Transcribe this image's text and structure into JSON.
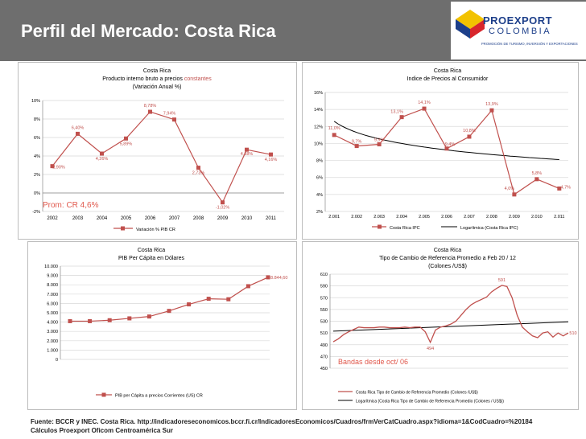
{
  "page": {
    "title": "Perfil del Mercado: Costa Rica",
    "logo": {
      "name": "PROEXPORT",
      "country": "COLOMBIA",
      "tagline": "PROMOCIÓN DE TURISMO, INVERSIÓN Y EXPORTACIONES"
    },
    "footer_source": "Fuente:  BCCR y INEC. Costa Rica. http://indicadoreseconomicos.bccr.fi.cr/IndicadoresEconomicos/Cuadros/frmVerCatCuadro.aspx?idioma=1&CodCuadro=%20184",
    "footer_calc": "Cálculos Proexport Oficom Centroamérica Sur",
    "colors": {
      "series": "#c0504d",
      "trend": "#000000",
      "label": "#c0504d",
      "note": "#e0584c",
      "header": "#6e6e6e"
    }
  },
  "chart_data": [
    {
      "type": "line",
      "title": "Costa Rica",
      "subtitle_prefix": "Producto interno bruto a precios ",
      "subtitle_highlight": "constantes",
      "subtitle2": "(Variación  Anual %)",
      "categories": [
        "2002",
        "2003",
        "2004",
        "2005",
        "2006",
        "2007",
        "2008",
        "2009",
        "2010",
        "2011"
      ],
      "x_positions": [
        2001.9,
        2002.95,
        2003.95,
        2004.95,
        2005.95,
        2006.95,
        2007.95,
        2008.95,
        2009.95,
        2010.95
      ],
      "xlim": [
        2001.5,
        2011.5
      ],
      "series": [
        {
          "name": "Variación % PIB CR",
          "values": [
            2.9,
            6.4,
            4.26,
            5.89,
            8.78,
            7.94,
            2.73,
            -1.02,
            4.68,
            4.16
          ],
          "labels": [
            "2,90%",
            "6,40%",
            "4,26%",
            "5,89%",
            "8,78%",
            "7,94%",
            "2,73%",
            "-1,02%",
            "4,68%",
            "4,16%"
          ]
        }
      ],
      "ylim": [
        -2,
        10
      ],
      "yticks": [
        -2,
        0,
        2,
        4,
        6,
        8,
        10
      ],
      "ytick_labels": [
        "-2%",
        "0%",
        "2%",
        "4%",
        "6%",
        "8%",
        "10%"
      ],
      "annotation": "Prom: CR 4,6%",
      "grid": true,
      "legend_position": "bottom"
    },
    {
      "type": "line",
      "title": "Costa Rica",
      "subtitle": "Indice de Precios al Consumidor",
      "categories": [
        "2.001",
        "2.002",
        "2.003",
        "2.004",
        "2.005",
        "2.006",
        "2.007",
        "2.008",
        "2.009",
        "2.010",
        "2.011"
      ],
      "x": [
        2001,
        2002,
        2003,
        2004,
        2005,
        2006,
        2007,
        2008,
        2009,
        2010,
        2011
      ],
      "xlim": [
        2000.6,
        2011.4
      ],
      "series": [
        {
          "name": "Costa Rica IPC",
          "values": [
            11.0,
            9.7,
            9.9,
            13.1,
            14.1,
            9.4,
            10.8,
            13.9,
            4.0,
            5.8,
            4.7
          ],
          "labels": [
            "11,0%",
            "9,7%",
            "9,9%",
            "13,1%",
            "14,1%",
            "9,4%",
            "10,8%",
            "13,9%",
            "4,0%",
            "5,8%",
            "4,7%"
          ]
        },
        {
          "name": "Logarítmica (Costa Rica IPC)",
          "trend": "logarithmic",
          "start": 12.6,
          "end": 8.1
        }
      ],
      "ylim": [
        2,
        16
      ],
      "yticks": [
        2,
        4,
        6,
        8,
        10,
        12,
        14,
        16
      ],
      "ytick_labels": [
        "2%",
        "4%",
        "6%",
        "8%",
        "10%",
        "12%",
        "14%",
        "16%"
      ],
      "grid": true,
      "legend_position": "bottom"
    },
    {
      "type": "line",
      "title": "Costa Rica",
      "subtitle": "PIB Per Cápita en Dólares",
      "series": [
        {
          "name": "PIB per Cápita a precios Corrientes (US) CR",
          "values": [
            4100,
            4100,
            4200,
            4400,
            4600,
            5200,
            5900,
            6500,
            6450,
            7850,
            8800
          ],
          "end_label": "8.844,60"
        }
      ],
      "ylim": [
        0,
        10000
      ],
      "yticks": [
        0,
        1000,
        2000,
        3000,
        4000,
        5000,
        6000,
        7000,
        8000,
        9000,
        10000
      ],
      "ytick_labels": [
        "0",
        "1.000",
        "2.000",
        "3.000",
        "4.000",
        "5.000",
        "6.000",
        "7.000",
        "8.000",
        "9.000",
        "10.000"
      ],
      "grid": true,
      "legend_position": "bottom"
    },
    {
      "type": "line",
      "title": "Costa Rica",
      "subtitle": "Tipo de Cambio de Referencia Promedio a Feb 20 / 12",
      "subtitle2": "(Colones /US$)",
      "series": [
        {
          "name": "Costa Rica Tipo de Cambio de Referencia Promedio (Colones /US$)",
          "values": [
            495,
            500,
            507,
            512,
            516,
            520,
            519,
            519,
            519,
            520,
            520,
            519,
            519,
            519,
            520,
            519,
            520,
            520,
            512,
            494,
            515,
            520,
            522,
            525,
            530,
            540,
            550,
            558,
            563,
            567,
            571,
            580,
            586,
            591,
            589,
            570,
            540,
            520,
            512,
            505,
            502,
            510,
            512,
            503,
            510,
            505,
            510
          ]
        },
        {
          "name": "Logarítmica (Costa Rica Tipo de Cambio de Referencia Promedio (Colones / US$))",
          "trend": "logarithmic",
          "start": 513,
          "end": 529
        }
      ],
      "point_labels": [
        {
          "index": 19,
          "text": "494"
        },
        {
          "index": 33,
          "text": "591"
        },
        {
          "index": 46,
          "text": "510"
        }
      ],
      "ylim": [
        450,
        610
      ],
      "yticks": [
        450,
        470,
        490,
        510,
        530,
        550,
        570,
        590,
        610
      ],
      "ytick_labels": [
        "450",
        "470",
        "490",
        "510",
        "530",
        "550",
        "570",
        "590",
        "610"
      ],
      "annotation": "Bandas desde  oct/ 06",
      "grid": true,
      "legend_position": "bottom"
    }
  ]
}
